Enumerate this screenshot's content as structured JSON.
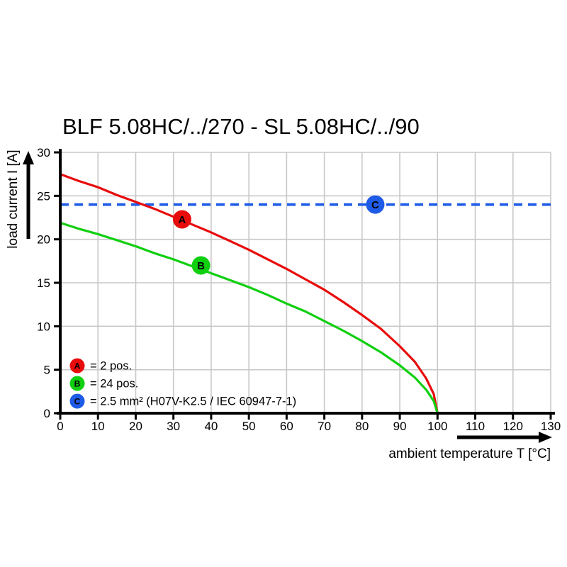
{
  "title": "BLF 5.08HC/../270 - SL 5.08HC/../90",
  "chart_data": {
    "type": "line",
    "title": "BLF 5.08HC/../270 - SL 5.08HC/../90",
    "xlabel": "ambient temperature T [°C]",
    "ylabel": "load current I [A]",
    "xlim": [
      0,
      130
    ],
    "ylim": [
      0,
      30
    ],
    "xticks": [
      0,
      10,
      20,
      30,
      40,
      50,
      60,
      70,
      80,
      90,
      100,
      110,
      120,
      130
    ],
    "yticks": [
      0,
      5,
      10,
      15,
      20,
      25,
      30
    ],
    "grid": true,
    "grid_color": "#c8c8c8",
    "axis_color": "#000000",
    "series": [
      {
        "name": "A",
        "label": "= 2 pos.",
        "color": "#e80c0c",
        "style": "solid",
        "points": [
          [
            0,
            27.5
          ],
          [
            5,
            26.7
          ],
          [
            10,
            26.0
          ],
          [
            15,
            25.1
          ],
          [
            20,
            24.3
          ],
          [
            25,
            23.5
          ],
          [
            30,
            22.6
          ],
          [
            35,
            21.7
          ],
          [
            40,
            20.8
          ],
          [
            45,
            19.8
          ],
          [
            50,
            18.8
          ],
          [
            55,
            17.7
          ],
          [
            60,
            16.6
          ],
          [
            65,
            15.4
          ],
          [
            70,
            14.2
          ],
          [
            75,
            12.8
          ],
          [
            80,
            11.3
          ],
          [
            85,
            9.7
          ],
          [
            90,
            7.7
          ],
          [
            94,
            5.9
          ],
          [
            97,
            4.0
          ],
          [
            99,
            2.2
          ],
          [
            100,
            0
          ]
        ]
      },
      {
        "name": "B",
        "label": "= 24 pos.",
        "color": "#0fcf0f",
        "style": "solid",
        "points": [
          [
            0,
            21.9
          ],
          [
            5,
            21.2
          ],
          [
            10,
            20.6
          ],
          [
            15,
            19.9
          ],
          [
            20,
            19.2
          ],
          [
            25,
            18.4
          ],
          [
            30,
            17.7
          ],
          [
            35,
            16.9
          ],
          [
            40,
            16.1
          ],
          [
            45,
            15.3
          ],
          [
            50,
            14.5
          ],
          [
            55,
            13.6
          ],
          [
            60,
            12.6
          ],
          [
            65,
            11.7
          ],
          [
            70,
            10.6
          ],
          [
            75,
            9.5
          ],
          [
            80,
            8.3
          ],
          [
            85,
            7.0
          ],
          [
            90,
            5.5
          ],
          [
            94,
            4.1
          ],
          [
            97,
            2.7
          ],
          [
            99,
            1.4
          ],
          [
            100,
            0
          ]
        ]
      },
      {
        "name": "C",
        "label": "= 2.5 mm² (H07V-K2.5 / IEC 60947-7-1)",
        "color": "#1e5be6",
        "style": "dashed",
        "points": [
          [
            0,
            24
          ],
          [
            130,
            24
          ]
        ]
      }
    ],
    "markers": [
      {
        "letter": "A",
        "x": 32.3,
        "y": 22.3,
        "color": "#e80c0c",
        "text_color": "#ffffff"
      },
      {
        "letter": "B",
        "x": 37.3,
        "y": 17.0,
        "color": "#0fcf0f",
        "text_color": "#ffffff"
      },
      {
        "letter": "C",
        "x": 83.5,
        "y": 24.0,
        "color": "#1e5be6",
        "text_color": "#ffffff"
      }
    ],
    "legend": {
      "position": "lower-left",
      "entries": [
        {
          "letter": "A",
          "text": "= 2 pos.",
          "color": "#e80c0c"
        },
        {
          "letter": "B",
          "text": "= 24 pos.",
          "color": "#0fcf0f"
        },
        {
          "letter": "C",
          "text": "= 2.5 mm² (H07V-K2.5 / IEC 60947-7-1)",
          "color": "#1e5be6"
        }
      ]
    }
  }
}
